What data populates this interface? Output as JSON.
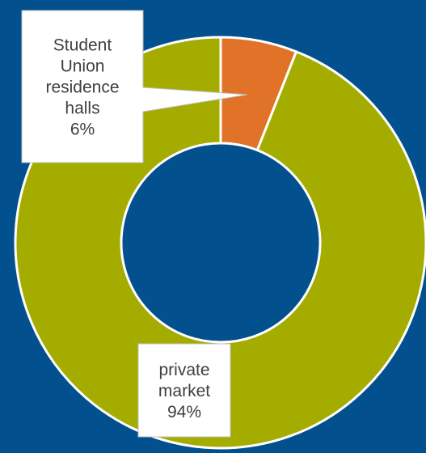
{
  "chart_data": {
    "type": "pie",
    "title": "",
    "donut": true,
    "slices": [
      {
        "name": "Student Union residence halls",
        "value": 6,
        "label_lines": [
          "Student",
          "Union",
          "residence",
          "halls",
          "6%"
        ],
        "color": "#e07328"
      },
      {
        "name": "private market",
        "value": 94,
        "label_lines": [
          "private",
          "market",
          "94%"
        ],
        "color": "#a5ac00"
      }
    ],
    "legend": "none",
    "background_color": "#03508f",
    "separator_color": "#ffffff"
  }
}
